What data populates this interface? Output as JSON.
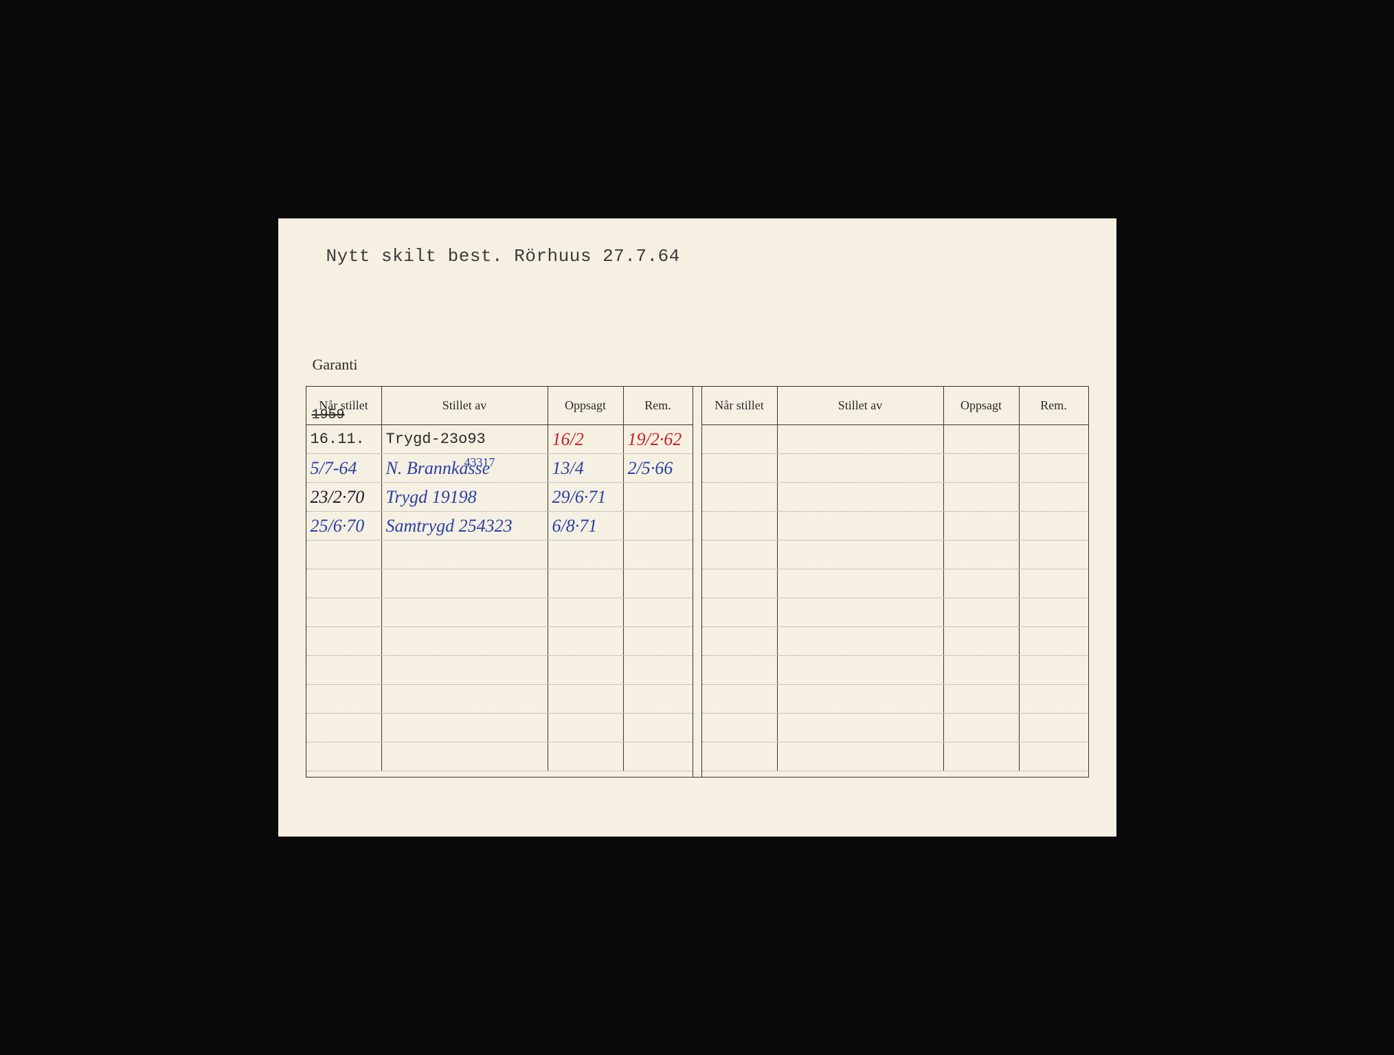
{
  "header_note": "Nytt skilt best. Rörhuus 27.7.64",
  "section_title": "Garanti",
  "columns": {
    "nar": "Når stillet",
    "av": "Stillet av",
    "opp": "Oppsagt",
    "rem": "Rem."
  },
  "year_strike": "1959",
  "small_annotation": "43317",
  "rows_left": [
    {
      "nar": "16.11.",
      "nar_cls": "typed",
      "av": "Trygd-23o93",
      "av_cls": "typed",
      "opp": "16/2",
      "opp_cls": "hw-red",
      "rem": "19/2·62",
      "rem_cls": "hw-red"
    },
    {
      "nar": "5/7-64",
      "nar_cls": "hw-blue",
      "av": "N. Brannkasse",
      "av_cls": "hw-blue",
      "opp": "13/4",
      "opp_cls": "hw-blue",
      "rem": "2/5·66",
      "rem_cls": "hw-blue"
    },
    {
      "nar": "23/2·70",
      "nar_cls": "hw-dark",
      "av": "Trygd 19198",
      "av_cls": "hw-blue",
      "opp": "29/6·71",
      "opp_cls": "hw-blue",
      "rem": "",
      "rem_cls": ""
    },
    {
      "nar": "25/6·70",
      "nar_cls": "hw-blue",
      "av": "Samtrygd 254323",
      "av_cls": "hw-blue",
      "opp": "6/8·71",
      "opp_cls": "hw-blue",
      "rem": "",
      "rem_cls": ""
    },
    {
      "nar": "",
      "av": "",
      "opp": "",
      "rem": ""
    },
    {
      "nar": "",
      "av": "",
      "opp": "",
      "rem": ""
    },
    {
      "nar": "",
      "av": "",
      "opp": "",
      "rem": ""
    },
    {
      "nar": "",
      "av": "",
      "opp": "",
      "rem": ""
    },
    {
      "nar": "",
      "av": "",
      "opp": "",
      "rem": ""
    },
    {
      "nar": "",
      "av": "",
      "opp": "",
      "rem": ""
    },
    {
      "nar": "",
      "av": "",
      "opp": "",
      "rem": ""
    },
    {
      "nar": "",
      "av": "",
      "opp": "",
      "rem": ""
    }
  ],
  "rows_right": [
    {
      "nar": "",
      "av": "",
      "opp": "",
      "rem": ""
    },
    {
      "nar": "",
      "av": "",
      "opp": "",
      "rem": ""
    },
    {
      "nar": "",
      "av": "",
      "opp": "",
      "rem": ""
    },
    {
      "nar": "",
      "av": "",
      "opp": "",
      "rem": ""
    },
    {
      "nar": "",
      "av": "",
      "opp": "",
      "rem": ""
    },
    {
      "nar": "",
      "av": "",
      "opp": "",
      "rem": ""
    },
    {
      "nar": "",
      "av": "",
      "opp": "",
      "rem": ""
    },
    {
      "nar": "",
      "av": "",
      "opp": "",
      "rem": ""
    },
    {
      "nar": "",
      "av": "",
      "opp": "",
      "rem": ""
    },
    {
      "nar": "",
      "av": "",
      "opp": "",
      "rem": ""
    },
    {
      "nar": "",
      "av": "",
      "opp": "",
      "rem": ""
    },
    {
      "nar": "",
      "av": "",
      "opp": "",
      "rem": ""
    }
  ],
  "colors": {
    "paper": "#f5f0e1",
    "frame": "#0a0a0a",
    "ink_typed": "#2a2a2a",
    "ink_red": "#c6202a",
    "ink_blue": "#2a3ea8",
    "rule": "#333333",
    "dotted": "#999999"
  }
}
